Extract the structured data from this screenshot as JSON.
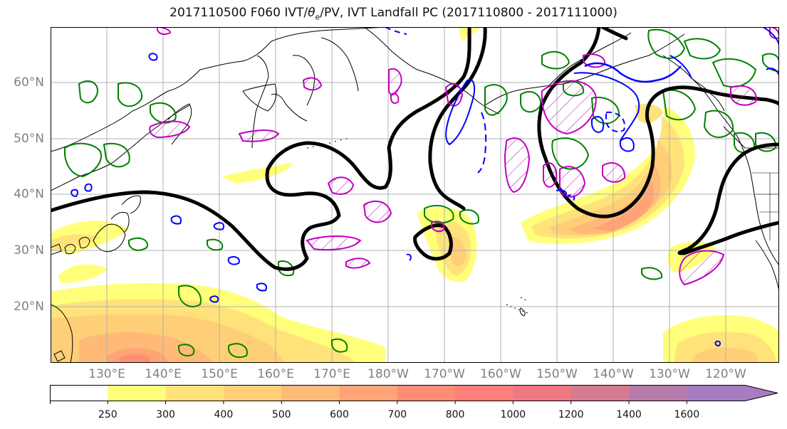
{
  "title": {
    "prefix": "2017110500 F060 IVT/",
    "symbol": "θ",
    "subscript": "e",
    "suffix": "/PV, IVT Landfall PC (2017110800 - 2017111000)"
  },
  "axes": {
    "lat_labels": [
      "60°N",
      "50°N",
      "40°N",
      "30°N",
      "20°N"
    ],
    "lon_labels": [
      "130°E",
      "140°E",
      "150°E",
      "160°E",
      "170°E",
      "180°W",
      "170°W",
      "160°W",
      "150°W",
      "140°W",
      "130°W",
      "120°W"
    ]
  },
  "colorbar": {
    "ticks": [
      "250",
      "300",
      "400",
      "500",
      "600",
      "700",
      "800",
      "1000",
      "1200",
      "1400",
      "1600"
    ],
    "colors": [
      "#ffffff",
      "#ffff7a",
      "#ffe37a",
      "#ffcf78",
      "#ffba78",
      "#ffa476",
      "#ff8e74",
      "#ff7f7a",
      "#f07882",
      "#d67a92",
      "#b77cac",
      "#a77cc0"
    ],
    "extend": "max"
  },
  "colors": {
    "theta_e_contour": "#000000",
    "pv_contour": "#008000",
    "ivt_pc_positive": "#c000c0",
    "ivt_pc_negative": "#0000ff",
    "coastline": "#000000",
    "grid": "#b0b0b0"
  }
}
